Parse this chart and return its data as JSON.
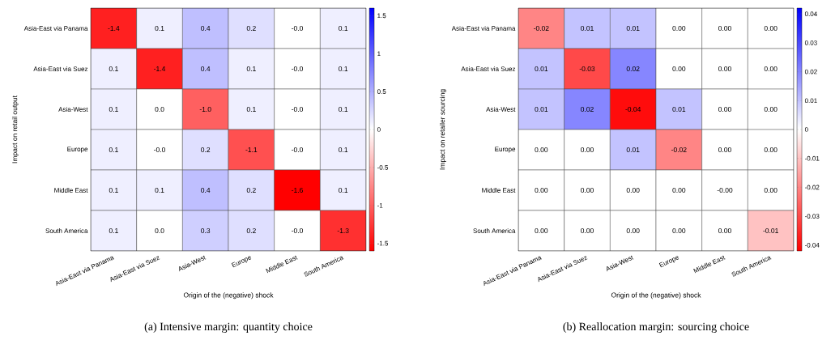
{
  "chart_data": [
    {
      "type": "heatmap",
      "xlabel": "Origin of the (negative) shock",
      "ylabel": "Impact on retail output",
      "categories": [
        "Asia-East via Panama",
        "Asia-East via Suez",
        "Asia-West",
        "Europe",
        "Middle East",
        "South America"
      ],
      "y_categories": [
        "Asia-East via Panama",
        "Asia-East via Suez",
        "Asia-West",
        "Europe",
        "Middle East",
        "South America"
      ],
      "cells": [
        [
          -1.4,
          0.1,
          0.4,
          0.2,
          0.0,
          0.1
        ],
        [
          0.1,
          -1.4,
          0.4,
          0.1,
          0.0,
          0.1
        ],
        [
          0.1,
          0.0,
          -1.0,
          0.1,
          0.0,
          0.1
        ],
        [
          0.1,
          0.0,
          0.2,
          -1.1,
          0.0,
          0.1
        ],
        [
          0.1,
          0.1,
          0.4,
          0.2,
          -1.6,
          0.1
        ],
        [
          0.1,
          0.0,
          0.3,
          0.2,
          0.0,
          -1.3
        ]
      ],
      "cell_labels": [
        [
          "-1.4",
          "0.1",
          "0.4",
          "0.2",
          "-0.0",
          "0.1"
        ],
        [
          "0.1",
          "-1.4",
          "0.4",
          "0.1",
          "-0.0",
          "0.1"
        ],
        [
          "0.1",
          "0.0",
          "-1.0",
          "0.1",
          "-0.0",
          "0.1"
        ],
        [
          "0.1",
          "-0.0",
          "0.2",
          "-1.1",
          "-0.0",
          "0.1"
        ],
        [
          "0.1",
          "0.1",
          "0.4",
          "0.2",
          "-1.6",
          "0.1"
        ],
        [
          "0.1",
          "0.0",
          "0.3",
          "0.2",
          "-0.0",
          "-1.3"
        ]
      ],
      "clim": [
        -1.6,
        1.6
      ],
      "cticks": [
        -1.5,
        -1,
        -0.5,
        0,
        0.5,
        1,
        1.5
      ],
      "annotations": [
        "(a) Intensive margin: quantity choice"
      ]
    },
    {
      "type": "heatmap",
      "xlabel": "Origin of the (negative) shock",
      "ylabel": "Impact on retailer sourcing",
      "categories": [
        "Asia-East via Panama",
        "Asia-East via Suez",
        "Asia-West",
        "Europe",
        "Middle East",
        "South America"
      ],
      "y_categories": [
        "Asia-East via Panama",
        "Asia-East via Suez",
        "Asia-West",
        "Europe",
        "Middle East",
        "South America"
      ],
      "cells": [
        [
          -0.02,
          0.01,
          0.01,
          0.0,
          0.0,
          0.0
        ],
        [
          0.01,
          -0.03,
          0.02,
          0.0,
          0.0,
          0.0
        ],
        [
          0.01,
          0.02,
          -0.04,
          0.01,
          0.0,
          0.0
        ],
        [
          0.0,
          0.0,
          0.01,
          -0.02,
          0.0,
          0.0
        ],
        [
          0.0,
          0.0,
          0.0,
          0.0,
          0.0,
          0.0
        ],
        [
          0.0,
          0.0,
          0.0,
          0.0,
          0.0,
          -0.01
        ]
      ],
      "cell_labels": [
        [
          "-0.02",
          "0.01",
          "0.01",
          "0.00",
          "0.00",
          "0.00"
        ],
        [
          "0.01",
          "-0.03",
          "0.02",
          "0.00",
          "0.00",
          "0.00"
        ],
        [
          "0.01",
          "0.02",
          "-0.04",
          "0.01",
          "0.00",
          "0.00"
        ],
        [
          "0.00",
          "0.00",
          "0.01",
          "-0.02",
          "0.00",
          "0.00"
        ],
        [
          "0.00",
          "0.00",
          "0.00",
          "0.00",
          "-0.00",
          "0.00"
        ],
        [
          "0.00",
          "0.00",
          "0.00",
          "0.00",
          "0.00",
          "-0.01"
        ]
      ],
      "clim": [
        -0.042,
        0.042
      ],
      "cticks": [
        -0.04,
        -0.03,
        -0.02,
        -0.01,
        0,
        0.01,
        0.02,
        0.03,
        0.04
      ],
      "annotations": [
        "(b) Reallocation margin: sourcing choice"
      ]
    }
  ]
}
